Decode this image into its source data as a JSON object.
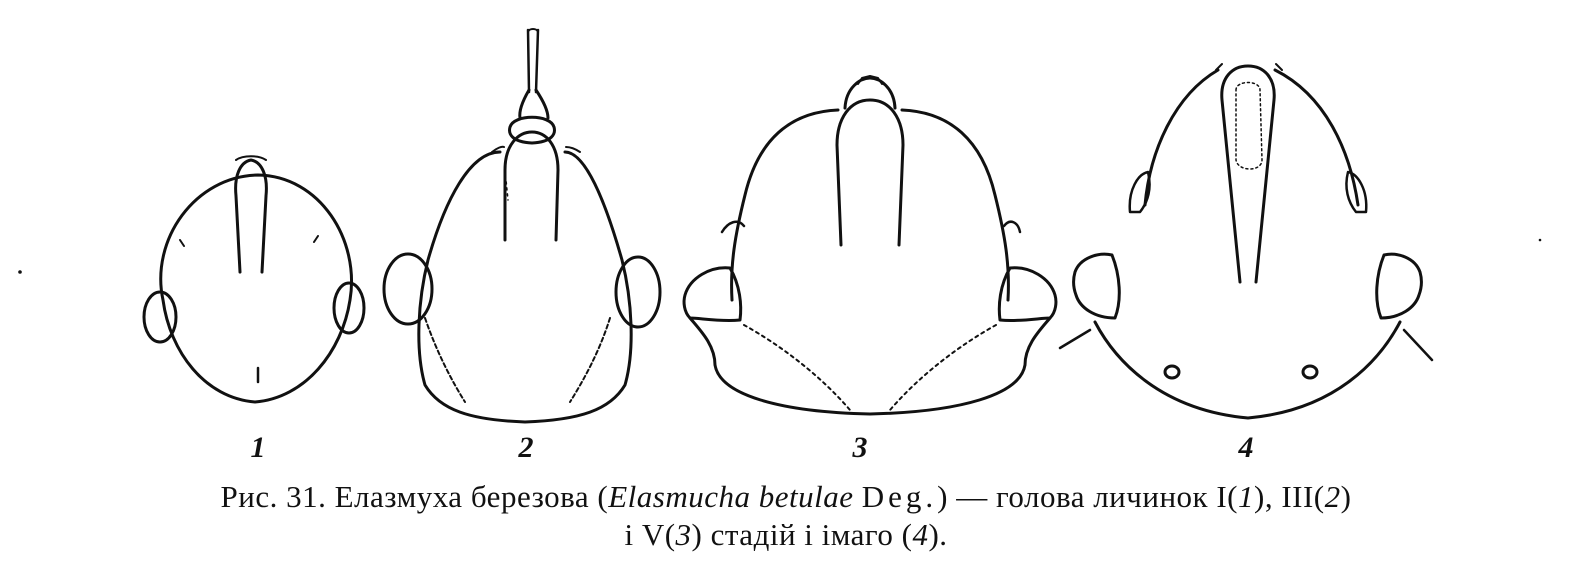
{
  "figure": {
    "panels": [
      {
        "number": "1",
        "icon": "larva-head-first-instar-drawing"
      },
      {
        "number": "2",
        "icon": "larva-head-third-instar-drawing"
      },
      {
        "number": "3",
        "icon": "larva-head-fifth-instar-drawing"
      },
      {
        "number": "4",
        "icon": "adult-head-drawing"
      }
    ],
    "caption": {
      "label": "Рис. 31.",
      "common_name": "Елазмуха березова",
      "open_paren": "(",
      "genus_species": "Elasmucha betulae",
      "author": "Deg.",
      "close_paren": ")",
      "line1_rest": "— голова личинок I(",
      "ref1": "1",
      "mid1": "), III(",
      "ref2": "2",
      "end1": ")",
      "line2_start": "і V(",
      "ref3": "3",
      "line2_mid": ") стадій і імаго (",
      "ref4": "4",
      "line2_end": ")."
    }
  }
}
